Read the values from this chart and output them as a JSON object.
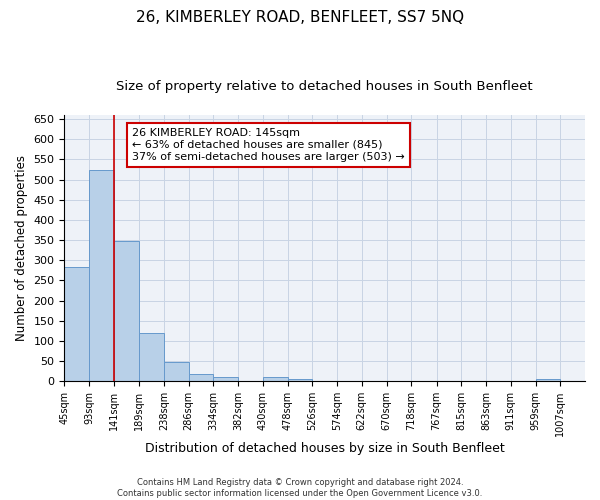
{
  "title": "26, KIMBERLEY ROAD, BENFLEET, SS7 5NQ",
  "subtitle": "Size of property relative to detached houses in South Benfleet",
  "xlabel": "Distribution of detached houses by size in South Benfleet",
  "ylabel": "Number of detached properties",
  "footer_line1": "Contains HM Land Registry data © Crown copyright and database right 2024.",
  "footer_line2": "Contains public sector information licensed under the Open Government Licence v3.0.",
  "property_label": "26 KIMBERLEY ROAD: 145sqm",
  "annotation_line2": "← 63% of detached houses are smaller (845)",
  "annotation_line3": "37% of semi-detached houses are larger (503) →",
  "bar_edges": [
    45,
    93,
    141,
    189,
    238,
    286,
    334,
    382,
    430,
    478,
    526,
    574,
    622,
    670,
    718,
    767,
    815,
    863,
    911,
    959,
    1007
  ],
  "bar_heights": [
    283,
    523,
    347,
    121,
    48,
    18,
    11,
    0,
    10,
    5,
    0,
    0,
    0,
    0,
    0,
    0,
    0,
    0,
    0,
    5
  ],
  "bar_color": "#b8d0e8",
  "bar_edge_color": "#6699cc",
  "vline_color": "#cc0000",
  "vline_x": 141,
  "ylim": [
    0,
    660
  ],
  "yticks": [
    0,
    50,
    100,
    150,
    200,
    250,
    300,
    350,
    400,
    450,
    500,
    550,
    600,
    650
  ],
  "grid_color": "#c8d4e4",
  "bg_color": "#eef2f8",
  "annotation_box_color": "#cc0000",
  "title_fontsize": 11,
  "subtitle_fontsize": 9.5,
  "xlabel_fontsize": 9,
  "ylabel_fontsize": 8.5,
  "footer_fontsize": 6,
  "annot_fontsize": 8
}
